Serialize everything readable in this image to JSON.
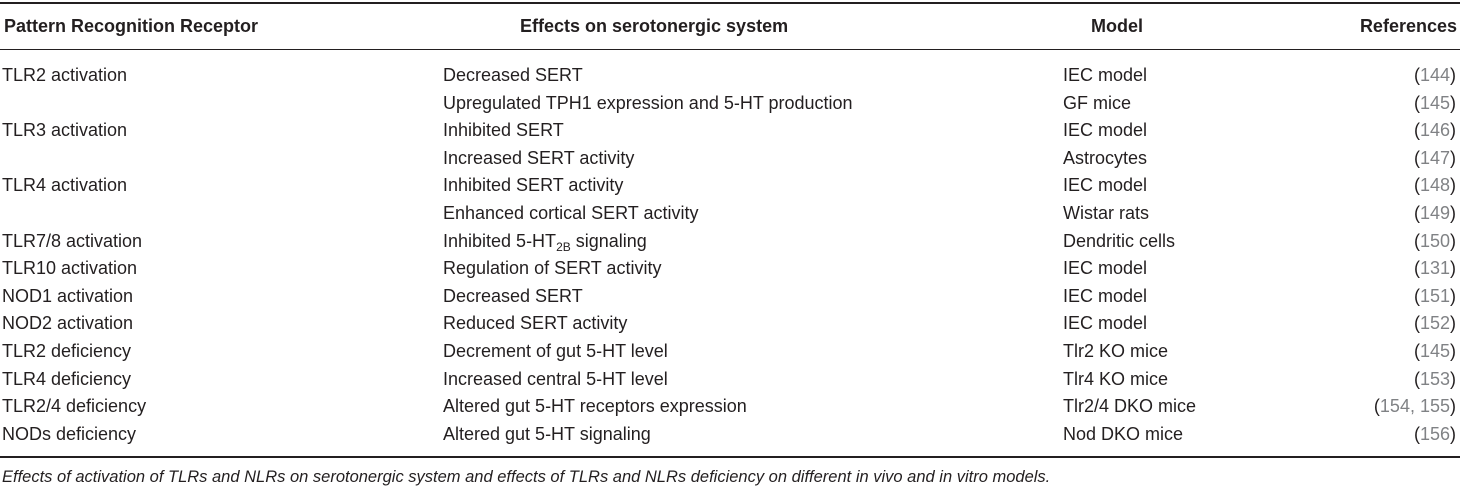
{
  "table": {
    "headers": {
      "receptor": "Pattern Recognition Receptor",
      "effects": "Effects on serotonergic system",
      "model": "Model",
      "references": "References"
    },
    "rows": [
      {
        "receptor": "TLR2 activation",
        "effect": "Decreased SERT",
        "model": "IEC model",
        "ref_open": "(",
        "ref": "144",
        "ref_close": ")"
      },
      {
        "receptor": "",
        "effect": "Upregulated TPH1 expression and 5-HT production",
        "model": "GF mice",
        "ref_open": "(",
        "ref": "145",
        "ref_close": ")"
      },
      {
        "receptor": "TLR3 activation",
        "effect": "Inhibited SERT",
        "model": "IEC model",
        "ref_open": "(",
        "ref": "146",
        "ref_close": ")"
      },
      {
        "receptor": "",
        "effect": "Increased SERT activity",
        "model": "Astrocytes",
        "ref_open": "(",
        "ref": "147",
        "ref_close": ")"
      },
      {
        "receptor": "TLR4 activation",
        "effect": "Inhibited SERT activity",
        "model": "IEC model",
        "ref_open": "(",
        "ref": "148",
        "ref_close": ")"
      },
      {
        "receptor": "",
        "effect": "Enhanced cortical SERT activity",
        "model": "Wistar rats",
        "ref_open": "(",
        "ref": "149",
        "ref_close": ")"
      },
      {
        "receptor": "TLR7/8 activation",
        "effect_prefix": "Inhibited 5-HT",
        "effect_sub": "2B",
        "effect_suffix": " signaling",
        "model": "Dendritic cells",
        "ref_open": "(",
        "ref": "150",
        "ref_close": ")"
      },
      {
        "receptor": "TLR10 activation",
        "effect": "Regulation of SERT activity",
        "model": "IEC model",
        "ref_open": "(",
        "ref": "131",
        "ref_close": ")"
      },
      {
        "receptor": "NOD1 activation",
        "effect": "Decreased SERT",
        "model": "IEC model",
        "ref_open": "(",
        "ref": "151",
        "ref_close": ")"
      },
      {
        "receptor": "NOD2 activation",
        "effect": "Reduced SERT activity",
        "model": "IEC model",
        "ref_open": "(",
        "ref": "152",
        "ref_close": ")"
      },
      {
        "receptor": "TLR2 deficiency",
        "effect": "Decrement of gut 5-HT level",
        "model": "Tlr2 KO mice",
        "ref_open": "(",
        "ref": "145",
        "ref_close": ")"
      },
      {
        "receptor": "TLR4 deficiency",
        "effect": "Increased central 5-HT level",
        "model": "Tlr4 KO mice",
        "ref_open": "(",
        "ref": "153",
        "ref_close": ")"
      },
      {
        "receptor": "TLR2/4 deficiency",
        "effect": "Altered gut 5-HT receptors expression",
        "model": "Tlr2/4 DKO mice",
        "ref_open": "(",
        "ref": "154, 155",
        "ref_close": ")"
      },
      {
        "receptor": "NODs deficiency",
        "effect": "Altered gut 5-HT signaling",
        "model": "Nod DKO mice",
        "ref_open": "(",
        "ref": "156",
        "ref_close": ")"
      }
    ]
  },
  "caption": "Effects of activation of TLRs and NLRs on serotonergic system and effects of TLRs and NLRs deficiency on different in vivo and in vitro models.",
  "colors": {
    "text": "#231f20",
    "reference_link": "#808285",
    "rule": "#231f20"
  }
}
